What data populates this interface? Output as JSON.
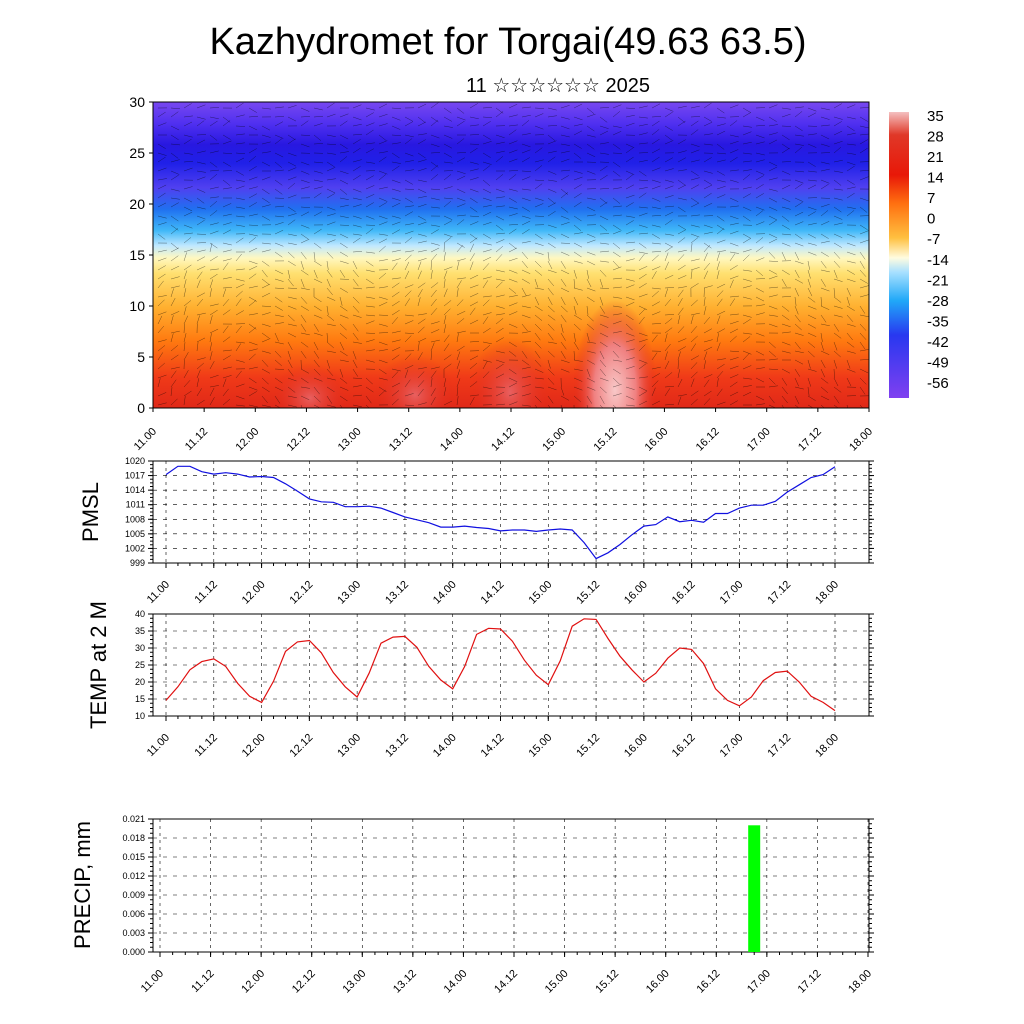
{
  "title": "Kazhydromet for Torgai(49.63 63.5)",
  "subtitle": "11 ☆☆☆☆☆☆ 2025",
  "time_ticks": [
    "11.00",
    "11.12",
    "12.00",
    "12.12",
    "13.00",
    "13.12",
    "14.00",
    "14.12",
    "15.00",
    "15.12",
    "16.00",
    "16.12",
    "17.00",
    "17.12",
    "18.00"
  ],
  "chart_data": [
    {
      "type": "heatmap",
      "name": "cross-section",
      "ylim": [
        0,
        30
      ],
      "y_ticks": [
        0,
        5,
        10,
        15,
        20,
        25,
        30
      ],
      "colorbar_labels": [
        "35",
        "28",
        "21",
        "14",
        "7",
        "0",
        "-7",
        "-14",
        "-21",
        "-28",
        "-35",
        "-42",
        "-49",
        "-56"
      ],
      "colorbar_colors": [
        "#f0b8b8",
        "#e03020",
        "#ff8000",
        "#ffc040",
        "#ffff80",
        "#a0e0ff",
        "#20a0f0",
        "#2020f0",
        "#8040f0"
      ]
    },
    {
      "type": "line",
      "ylabel": "PMSL",
      "ylim": [
        999,
        1020
      ],
      "y_ticks": [
        999,
        1002,
        1005,
        1008,
        1011,
        1014,
        1017,
        1020
      ],
      "color": "#1010e0",
      "x_hours": [
        0,
        3,
        6,
        9,
        12,
        15,
        18,
        21,
        24,
        27,
        30,
        33,
        36,
        39,
        42,
        45,
        48,
        51,
        54,
        57,
        60,
        63,
        66,
        69,
        72,
        75,
        78,
        81,
        84,
        87,
        90,
        93,
        96,
        99,
        102,
        105,
        108,
        111,
        114,
        117,
        120,
        123,
        126,
        129,
        132,
        135,
        138,
        141,
        144,
        147,
        150,
        153,
        156,
        159,
        162,
        165,
        168
      ],
      "values": [
        1017.2,
        1018.9,
        1018.9,
        1017.8,
        1017.3,
        1017.6,
        1017.3,
        1016.7,
        1016.8,
        1016.6,
        1015.3,
        1013.8,
        1012.2,
        1011.6,
        1011.5,
        1010.6,
        1010.6,
        1010.7,
        1010.3,
        1009.4,
        1008.5,
        1007.9,
        1007.3,
        1006.4,
        1006.4,
        1006.6,
        1006.3,
        1006.1,
        1005.6,
        1005.8,
        1005.8,
        1005.5,
        1005.8,
        1006.0,
        1005.8,
        1003.2,
        999.9,
        1001.1,
        1002.8,
        1004.8,
        1006.6,
        1006.9,
        1008.5,
        1007.5,
        1007.8,
        1007.4,
        1009.2,
        1009.2,
        1010.3,
        1010.9,
        1010.9,
        1011.7,
        1013.6,
        1015.1,
        1016.6,
        1017.2,
        1018.8
      ]
    },
    {
      "type": "line",
      "ylabel": "TEMP at 2 M",
      "ylim": [
        10,
        40
      ],
      "y_ticks": [
        10,
        15,
        20,
        25,
        30,
        35,
        40
      ],
      "color": "#e01010",
      "x_hours": [
        0,
        3,
        6,
        9,
        12,
        15,
        18,
        21,
        24,
        27,
        30,
        33,
        36,
        39,
        42,
        45,
        48,
        51,
        54,
        57,
        60,
        63,
        66,
        69,
        72,
        75,
        78,
        81,
        84,
        87,
        90,
        93,
        96,
        99,
        102,
        105,
        108,
        111,
        114,
        117,
        120,
        123,
        126,
        129,
        132,
        135,
        138,
        141,
        144,
        147,
        150,
        153,
        156,
        159,
        162,
        165,
        168
      ],
      "values": [
        14.6,
        18.6,
        23.6,
        26.0,
        26.8,
        24.6,
        19.6,
        15.8,
        14.0,
        20.2,
        29.0,
        31.8,
        32.2,
        28.6,
        22.8,
        18.6,
        15.6,
        22.6,
        31.4,
        33.2,
        33.4,
        30.2,
        24.6,
        20.6,
        18.0,
        24.6,
        34.0,
        35.8,
        35.6,
        32.0,
        26.4,
        22.0,
        19.2,
        26.2,
        36.4,
        38.6,
        38.4,
        32.8,
        27.6,
        23.6,
        20.0,
        22.6,
        27.0,
        30.0,
        29.6,
        25.4,
        18.0,
        14.6,
        13.0,
        15.6,
        20.4,
        22.8,
        23.2,
        20.0,
        15.8,
        14.0,
        11.6
      ]
    },
    {
      "type": "bar",
      "ylabel": "PRECIP, mm",
      "ylim": [
        0,
        0.021
      ],
      "y_ticks": [
        "0.000",
        "0.003",
        "0.006",
        "0.009",
        "0.012",
        "0.015",
        "0.018",
        "0.021"
      ],
      "color": "#00ff00",
      "x_hours": [
        141
      ],
      "values": [
        0.02
      ]
    }
  ]
}
